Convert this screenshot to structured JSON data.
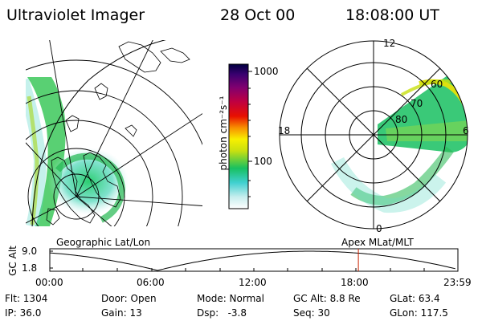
{
  "header": {
    "instrument": "Ultraviolet Imager",
    "date": "28 Oct 00",
    "time": "18:08:00 UT"
  },
  "map_panel": {
    "label": "Geographic Lat/Lon"
  },
  "polar_panel": {
    "label": "Apex MLat/MLT",
    "mlt_labels": [
      "12",
      "18",
      "6",
      "0"
    ],
    "mlat_labels": [
      "60",
      "70",
      "80"
    ]
  },
  "colorbar": {
    "label": "photon cm⁻²s⁻¹",
    "ticks": [
      "1000",
      "100"
    ]
  },
  "timeline": {
    "y_label": "GC Alt",
    "y_ticks": [
      "9.0",
      "1.8"
    ],
    "x_ticks": [
      "00:00",
      "06:00",
      "12:00",
      "18:00",
      "23:59"
    ],
    "marker_time": "18:08",
    "marker_color": "#cc2200"
  },
  "status": {
    "flt": "Flt: 1304",
    "ip": "IP: 36.0",
    "door": "Door: Open",
    "gain": "Gain: 13",
    "mode": "Mode: Normal",
    "dsp": "Dsp:   -3.8",
    "gc_alt": "GC Alt: 8.8 Re",
    "seq": "Seq: 30",
    "glat": "GLat: 63.4",
    "glon": "GLon: 117.5"
  }
}
